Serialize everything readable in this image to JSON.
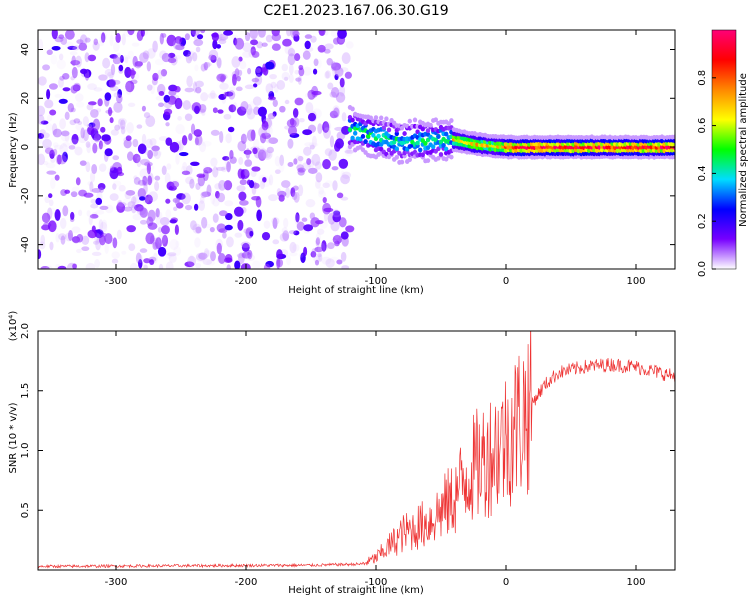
{
  "title": "C2E1.2023.167.06.30.G19",
  "colors": {
    "snr_line": "#ee3333",
    "background": "#ffffff",
    "axis": "#000000"
  },
  "chart_data": [
    {
      "type": "heatmap",
      "title": "C2E1.2023.167.06.30.G19",
      "xlabel": "Height of straight line (km)",
      "ylabel": "Frequency (Hz)",
      "xlim": [
        -360,
        130
      ],
      "ylim": [
        -50,
        48
      ],
      "xticks": [
        -300,
        -200,
        -100,
        0,
        100
      ],
      "yticks": [
        -40,
        -20,
        0,
        20,
        40
      ],
      "colorbar": {
        "label": "Normalized spectral amplitude",
        "range": [
          0,
          1
        ],
        "ticks": [
          0.0,
          0.2,
          0.4,
          0.6,
          0.8
        ],
        "colormap": [
          "#ffffff",
          "#7700ff",
          "#0000ff",
          "#00ddff",
          "#00ff00",
          "#ffff00",
          "#ff8800",
          "#ff0000",
          "#ff0077"
        ]
      },
      "regions": [
        {
          "name": "noise",
          "x_range": [
            -360,
            -120
          ],
          "freq_range": [
            -50,
            48
          ],
          "typical_amplitude": 0.1
        },
        {
          "name": "signal",
          "x_range": [
            -120,
            130
          ],
          "center_freq": [
            [
              -120,
              8
            ],
            [
              -100,
              4
            ],
            [
              -80,
              2
            ],
            [
              -60,
              3
            ],
            [
              -40,
              3
            ],
            [
              -20,
              1
            ],
            [
              0,
              0
            ],
            [
              130,
              0
            ]
          ],
          "peak_amplitude": 0.95
        }
      ],
      "grid": false
    },
    {
      "type": "line",
      "xlabel": "Height of straight line (km)",
      "ylabel": "SNR (10 * v/v)",
      "y_multiplier": "(x10⁴)",
      "xlim": [
        -360,
        130
      ],
      "ylim": [
        0,
        2.0
      ],
      "xticks": [
        -300,
        -200,
        -100,
        0,
        100
      ],
      "yticks": [
        0.5,
        1.0,
        1.5,
        2.0
      ],
      "series": [
        {
          "envelope": [
            [
              -360,
              0.03
            ],
            [
              -150,
              0.04
            ],
            [
              -110,
              0.05
            ],
            [
              -100,
              0.1
            ],
            [
              -90,
              0.2
            ],
            [
              -80,
              0.3
            ],
            [
              -60,
              0.4
            ],
            [
              -40,
              0.6
            ],
            [
              -30,
              0.8
            ],
            [
              -20,
              0.9
            ],
            [
              -10,
              1.0
            ],
            [
              0,
              1.1
            ],
            [
              10,
              1.25
            ],
            [
              20,
              1.4
            ],
            [
              30,
              1.55
            ],
            [
              40,
              1.65
            ],
            [
              60,
              1.7
            ],
            [
              80,
              1.72
            ],
            [
              100,
              1.7
            ],
            [
              130,
              1.62
            ]
          ]
        }
      ],
      "grid": false
    }
  ]
}
